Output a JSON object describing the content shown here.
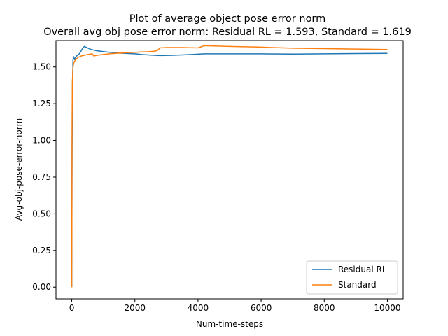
{
  "chart_data": {
    "type": "line",
    "title": "Plot of average object pose error norm",
    "subtitle": "Overall avg obj pose error norm: Residual RL = 1.593, Standard = 1.619",
    "xlabel": "Num-time-steps",
    "ylabel": "Avg-obj-pose-error-norm",
    "xlim": [
      -500,
      10500
    ],
    "ylim": [
      -0.08,
      1.68
    ],
    "xticks": [
      0,
      2000,
      4000,
      6000,
      8000,
      10000
    ],
    "xtick_labels": [
      "0",
      "2000",
      "4000",
      "6000",
      "8000",
      "10000"
    ],
    "yticks": [
      0.0,
      0.25,
      0.5,
      0.75,
      1.0,
      1.25,
      1.5
    ],
    "ytick_labels": [
      "0.00",
      "0.25",
      "0.50",
      "0.75",
      "1.00",
      "1.25",
      "1.50"
    ],
    "grid": false,
    "legend_position": "lower-right",
    "series": [
      {
        "name": "Residual RL",
        "color": "#1f77b4",
        "points": [
          [
            0,
            0.0
          ],
          [
            10,
            0.9
          ],
          [
            25,
            1.4
          ],
          [
            40,
            1.55
          ],
          [
            60,
            1.57
          ],
          [
            90,
            1.55
          ],
          [
            130,
            1.57
          ],
          [
            180,
            1.58
          ],
          [
            240,
            1.59
          ],
          [
            300,
            1.61
          ],
          [
            350,
            1.63
          ],
          [
            400,
            1.64
          ],
          [
            500,
            1.63
          ],
          [
            600,
            1.62
          ],
          [
            800,
            1.61
          ],
          [
            1000,
            1.605
          ],
          [
            1200,
            1.6
          ],
          [
            1500,
            1.595
          ],
          [
            2000,
            1.59
          ],
          [
            2200,
            1.585
          ],
          [
            2600,
            1.58
          ],
          [
            2800,
            1.578
          ],
          [
            3200,
            1.58
          ],
          [
            3800,
            1.585
          ],
          [
            4200,
            1.59
          ],
          [
            5000,
            1.59
          ],
          [
            6000,
            1.59
          ],
          [
            7000,
            1.588
          ],
          [
            8000,
            1.59
          ],
          [
            9000,
            1.592
          ],
          [
            10000,
            1.593
          ]
        ]
      },
      {
        "name": "Standard",
        "color": "#ff7f0e",
        "points": [
          [
            0,
            0.0
          ],
          [
            10,
            1.1
          ],
          [
            20,
            1.4
          ],
          [
            40,
            1.5
          ],
          [
            70,
            1.53
          ],
          [
            120,
            1.55
          ],
          [
            200,
            1.565
          ],
          [
            300,
            1.575
          ],
          [
            400,
            1.58
          ],
          [
            500,
            1.585
          ],
          [
            650,
            1.59
          ],
          [
            700,
            1.575
          ],
          [
            800,
            1.58
          ],
          [
            1000,
            1.585
          ],
          [
            1200,
            1.59
          ],
          [
            1500,
            1.595
          ],
          [
            2000,
            1.6
          ],
          [
            2500,
            1.605
          ],
          [
            2700,
            1.61
          ],
          [
            2800,
            1.63
          ],
          [
            3000,
            1.632
          ],
          [
            3500,
            1.632
          ],
          [
            4000,
            1.63
          ],
          [
            4200,
            1.645
          ],
          [
            5000,
            1.64
          ],
          [
            6000,
            1.635
          ],
          [
            7000,
            1.628
          ],
          [
            8000,
            1.625
          ],
          [
            9000,
            1.622
          ],
          [
            10000,
            1.619
          ]
        ]
      }
    ]
  }
}
